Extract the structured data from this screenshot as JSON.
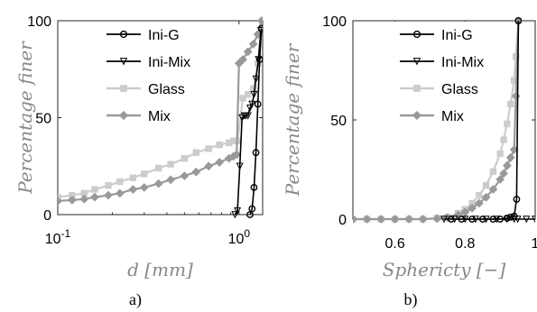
{
  "chart_data": [
    {
      "type": "line",
      "panel_label": "a)",
      "xlabel": "d [mm]",
      "ylabel": "Percentage finer",
      "xscale": "log",
      "xlim": [
        0.1,
        1.35
      ],
      "ylim": [
        0,
        100
      ],
      "xticks": [
        {
          "v": 0.1,
          "base": "10",
          "exp": "-1"
        },
        {
          "v": 1,
          "base": "10",
          "exp": "0"
        }
      ],
      "yticks": [
        0,
        50,
        100
      ],
      "legend_position": "top-right",
      "series": [
        {
          "name": "Ini-G",
          "color": "#000000",
          "marker": "circle",
          "x": [
            1.15,
            1.18,
            1.21,
            1.24,
            1.27,
            1.3,
            1.33
          ],
          "y": [
            0,
            3,
            14,
            32,
            57,
            80,
            96
          ]
        },
        {
          "name": "Ini-Mix",
          "color": "#000000",
          "marker": "triangle-down",
          "x": [
            0.95,
            0.98,
            1.01,
            1.04,
            1.07,
            1.09,
            1.12,
            1.15,
            1.18,
            1.21,
            1.24,
            1.28,
            1.32
          ],
          "y": [
            0,
            2,
            25,
            50,
            51,
            51,
            51,
            55,
            57,
            62,
            70,
            80,
            95
          ]
        },
        {
          "name": "Glass",
          "color": "#cccccc",
          "marker": "square",
          "x": [
            0.1,
            0.12,
            0.14,
            0.16,
            0.19,
            0.22,
            0.26,
            0.3,
            0.36,
            0.42,
            0.5,
            0.58,
            0.68,
            0.78,
            0.88,
            0.93,
            0.98,
            1.05,
            1.12,
            1.2,
            1.27,
            1.33
          ],
          "y": [
            9,
            10,
            11,
            13,
            15,
            17,
            19,
            21,
            24,
            26,
            29,
            32,
            34,
            36,
            37,
            38,
            38,
            60,
            62,
            65,
            78,
            96
          ]
        },
        {
          "name": "Mix",
          "color": "#999999",
          "marker": "diamond",
          "x": [
            0.1,
            0.12,
            0.14,
            0.16,
            0.19,
            0.22,
            0.26,
            0.3,
            0.36,
            0.42,
            0.5,
            0.58,
            0.68,
            0.78,
            0.88,
            0.93,
            0.97,
            1.0,
            1.05,
            1.12,
            1.2,
            1.27,
            1.33
          ],
          "y": [
            7,
            7.5,
            8,
            9,
            10,
            11,
            13,
            14,
            16,
            18,
            20,
            22,
            25,
            27,
            29,
            30,
            31,
            78,
            80,
            84,
            88,
            93,
            100
          ]
        }
      ]
    },
    {
      "type": "line",
      "panel_label": "b)",
      "xlabel": "Sphericty [−]",
      "ylabel": "Percentage finer",
      "xlim": [
        0.48,
        1.0
      ],
      "ylim": [
        0,
        100
      ],
      "xticks": [
        0.6,
        0.8,
        1
      ],
      "yticks": [
        0,
        50,
        100
      ],
      "legend_position": "top-right",
      "series": [
        {
          "name": "Ini-G",
          "color": "#000000",
          "marker": "circle",
          "x": [
            0.76,
            0.79,
            0.82,
            0.85,
            0.88,
            0.9,
            0.92,
            0.93,
            0.94,
            0.947,
            0.952
          ],
          "y": [
            0,
            0,
            0,
            0,
            0,
            0,
            0.5,
            1,
            1.5,
            10,
            100
          ]
        },
        {
          "name": "Ini-Mix",
          "color": "#000000",
          "marker": "triangle-down",
          "x": [
            0.74,
            0.77,
            0.8,
            0.83,
            0.86,
            0.89,
            0.92,
            0.94,
            0.95,
            0.975,
            1.0
          ],
          "y": [
            0,
            0,
            0,
            0,
            0,
            0,
            0,
            0,
            0,
            0,
            0
          ]
        },
        {
          "name": "Glass",
          "color": "#cccccc",
          "marker": "square",
          "x": [
            0.48,
            0.52,
            0.56,
            0.6,
            0.64,
            0.68,
            0.72,
            0.75,
            0.78,
            0.8,
            0.82,
            0.84,
            0.86,
            0.88,
            0.9,
            0.91,
            0.92,
            0.93,
            0.94,
            0.945,
            0.952
          ],
          "y": [
            0,
            0,
            0,
            0,
            0,
            0,
            0.5,
            1,
            3,
            5,
            8,
            12,
            17,
            24,
            33,
            40,
            48,
            58,
            70,
            82,
            100
          ]
        },
        {
          "name": "Mix",
          "color": "#999999",
          "marker": "diamond",
          "x": [
            0.48,
            0.52,
            0.56,
            0.6,
            0.64,
            0.68,
            0.72,
            0.75,
            0.78,
            0.8,
            0.82,
            0.84,
            0.86,
            0.88,
            0.9,
            0.91,
            0.92,
            0.93,
            0.94,
            0.945,
            0.952
          ],
          "y": [
            0,
            0,
            0,
            0,
            0,
            0,
            0.3,
            0.8,
            2,
            3.5,
            5.5,
            8,
            11,
            15,
            20,
            23,
            27,
            31,
            35,
            62,
            100
          ]
        }
      ]
    }
  ]
}
